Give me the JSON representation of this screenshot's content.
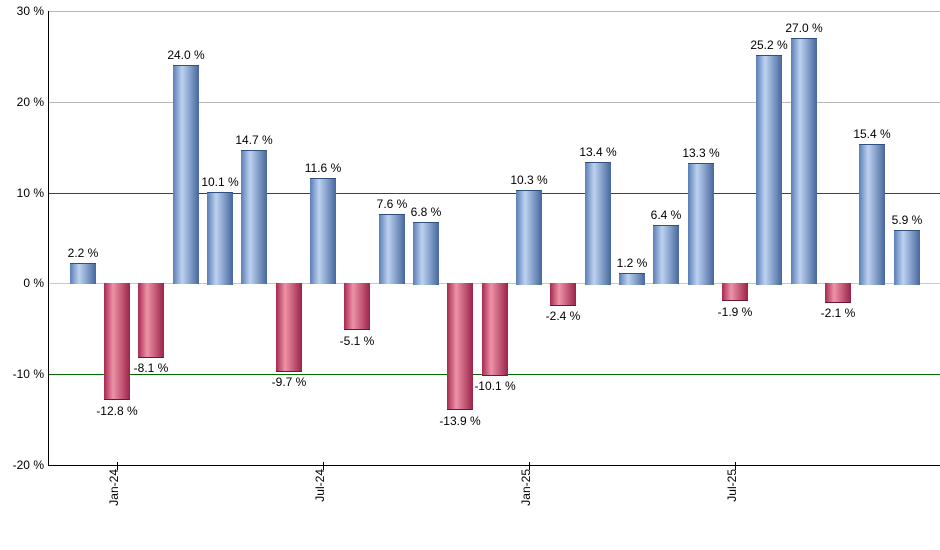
{
  "chart_data": {
    "type": "bar",
    "title": "",
    "xlabel": "",
    "ylabel": "",
    "unit": "%",
    "grid": "horizontal-only",
    "legend": "none",
    "y_axis": {
      "min": -20,
      "max": 30,
      "tick_interval": 10,
      "ticks": [
        {
          "value": 30,
          "label": "30 %"
        },
        {
          "value": 20,
          "label": "20 %"
        },
        {
          "value": 10,
          "label": "10 %"
        },
        {
          "value": 0,
          "label": "0 %"
        },
        {
          "value": -10,
          "label": "-10 %"
        },
        {
          "value": -20,
          "label": "-20 %"
        }
      ]
    },
    "gridlines": [
      {
        "value": 30,
        "color": "#b9b9b9"
      },
      {
        "value": 20,
        "color": "#b9b9b9"
      },
      {
        "value": 10,
        "color": "#006e00"
      },
      {
        "value": 0,
        "color": "#c9c9c9"
      },
      {
        "value": -10,
        "color": "#006e00"
      }
    ],
    "x_ticks": [
      {
        "bar_index": 2,
        "label": "Jan-24"
      },
      {
        "bar_index": 8,
        "label": "Jul-24"
      },
      {
        "bar_index": 14,
        "label": "Jan-25"
      },
      {
        "bar_index": 20,
        "label": "Jul-25"
      }
    ],
    "bars": [
      {
        "value": 2.2,
        "label": "2.2 %"
      },
      {
        "value": -12.8,
        "label": "-12.8 %"
      },
      {
        "value": -8.1,
        "label": "-8.1 %"
      },
      {
        "value": 24.0,
        "label": "24.0 %"
      },
      {
        "value": 10.1,
        "label": "10.1 %"
      },
      {
        "value": 14.7,
        "label": "14.7 %"
      },
      {
        "value": -9.7,
        "label": "-9.7 %"
      },
      {
        "value": 11.6,
        "label": "11.6 %"
      },
      {
        "value": -5.1,
        "label": "-5.1 %"
      },
      {
        "value": 7.6,
        "label": "7.6 %"
      },
      {
        "value": 6.8,
        "label": "6.8 %"
      },
      {
        "value": -13.9,
        "label": "-13.9 %"
      },
      {
        "value": -10.1,
        "label": "-10.1 %"
      },
      {
        "value": 10.3,
        "label": "10.3 %"
      },
      {
        "value": -2.4,
        "label": "-2.4 %"
      },
      {
        "value": 13.4,
        "label": "13.4 %"
      },
      {
        "value": 1.2,
        "label": "1.2 %"
      },
      {
        "value": 6.4,
        "label": "6.4 %"
      },
      {
        "value": 13.3,
        "label": "13.3 %"
      },
      {
        "value": -1.9,
        "label": "-1.9 %"
      },
      {
        "value": 25.2,
        "label": "25.2 %"
      },
      {
        "value": 27.0,
        "label": "27.0 %"
      },
      {
        "value": -2.1,
        "label": "-2.1 %"
      },
      {
        "value": 15.4,
        "label": "15.4 %"
      },
      {
        "value": 5.9,
        "label": "5.9 %"
      }
    ],
    "colors": {
      "positive": {
        "edge_left": "#5a7db6",
        "highlight": "#bdd2f0",
        "edge_right": "#46679d",
        "cap": "#30507f"
      },
      "negative": {
        "edge_left": "#a52950",
        "highlight": "#ee92a7",
        "edge_right": "#9a2349",
        "cap": "#701635"
      },
      "gridline_gray": "#b9b9b9",
      "zero_line": "#c9c9c9",
      "threshold_green": "#006e00",
      "axis": "#000000",
      "text": "#000000",
      "background": "#ffffff"
    }
  }
}
